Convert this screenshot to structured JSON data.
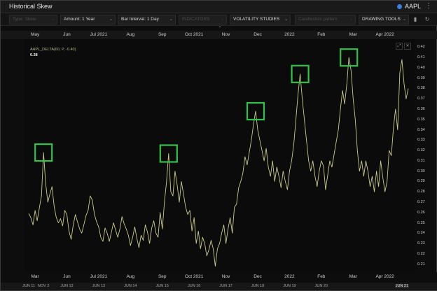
{
  "window": {
    "title": "Historical Skew",
    "symbol": "AAPL",
    "symbol_dot_color": "#3d7fe0",
    "menu_icon": "more-vertical-icon"
  },
  "toolbar": {
    "type_label": "Type: Skew",
    "amount_label": "Amount: 1 Year",
    "interval_label": "Bar Interval: 1 Day",
    "indicators_label": "INDICATORS",
    "volatility_label": "VOLATILITY STUDIES",
    "candlestick_label": "Candlestick pattern",
    "drawing_label": "DRAWING TOOLS",
    "icons": [
      "gear-icon",
      "trash-icon",
      "refresh-icon"
    ]
  },
  "legend": {
    "series_label": "AAPL_DELTA(60, P, -0.40)",
    "current_value": "0.38",
    "line_color": "#c8cc8a"
  },
  "highlight_color": "#35c24a",
  "top_axis_labels": [
    {
      "text": "May",
      "x": 1.5
    },
    {
      "text": "Jun",
      "x": 9
    },
    {
      "text": "Jul 2021",
      "x": 16.5
    },
    {
      "text": "Aug",
      "x": 24
    },
    {
      "text": "Sep",
      "x": 31.5
    },
    {
      "text": "Oct 2021",
      "x": 39
    },
    {
      "text": "Nov",
      "x": 46.5
    },
    {
      "text": "Dec",
      "x": 54
    },
    {
      "text": "2022",
      "x": 61.5
    },
    {
      "text": "Feb",
      "x": 69
    },
    {
      "text": "Mar",
      "x": 76.5
    },
    {
      "text": "Apr 2022",
      "x": 84
    }
  ],
  "bottom_axis_labels": [
    {
      "text": "Mar",
      "x": 1.5
    },
    {
      "text": "Jun",
      "x": 9
    },
    {
      "text": "Jul 2021",
      "x": 16.5
    },
    {
      "text": "Aug",
      "x": 24
    },
    {
      "text": "Sep",
      "x": 31.5
    },
    {
      "text": "Oct 2021",
      "x": 39
    },
    {
      "text": "Nov",
      "x": 46.5
    },
    {
      "text": "Dec",
      "x": 54
    },
    {
      "text": "2022",
      "x": 61.5
    },
    {
      "text": "Feb",
      "x": 69
    },
    {
      "text": "Mar",
      "x": 76.5
    },
    {
      "text": "Apr 2022",
      "x": 84
    }
  ],
  "contract_labels": [
    {
      "text": "JUN 11",
      "x": 0
    },
    {
      "text": "NOV 2",
      "x": 3.5
    },
    {
      "text": "JUN 12",
      "x": 9
    },
    {
      "text": "JUN 13",
      "x": 16.5
    },
    {
      "text": "JUN 14",
      "x": 24
    },
    {
      "text": "JUN 15",
      "x": 31.5
    },
    {
      "text": "JUN 16",
      "x": 39
    },
    {
      "text": "JUN 17",
      "x": 46.5
    },
    {
      "text": "JUN 18",
      "x": 54
    },
    {
      "text": "JUN 19",
      "x": 61.5
    },
    {
      "text": "JUN 20",
      "x": 69
    },
    {
      "text": "JUN 21",
      "x": 88
    }
  ],
  "chart_data": {
    "type": "line",
    "title": "",
    "xlabel": "",
    "ylabel": "",
    "x_range": [
      0,
      90
    ],
    "ylim": [
      0.205,
      0.425
    ],
    "y_ticks": [
      0.21,
      0.22,
      0.23,
      0.24,
      0.25,
      0.26,
      0.27,
      0.28,
      0.29,
      0.3,
      0.31,
      0.32,
      0.33,
      0.34,
      0.35,
      0.36,
      0.37,
      0.38,
      0.39,
      0.4,
      0.41,
      0.42
    ],
    "y_tick_labels": [
      "0.21",
      "0.22",
      "0.23",
      "0.24",
      "0.25",
      "0.26",
      "0.27",
      "0.28",
      "0.29",
      "0.30",
      "0.31",
      "0.32",
      "0.33",
      "0.34",
      "0.35",
      "0.36",
      "0.37",
      "0.38",
      "0.39",
      "0.40",
      "0.41",
      "0.42"
    ],
    "series": [
      {
        "values": [
          [
            0,
            0.259
          ],
          [
            0.5,
            0.255
          ],
          [
            1,
            0.248
          ],
          [
            1.5,
            0.262
          ],
          [
            2,
            0.252
          ],
          [
            2.5,
            0.264
          ],
          [
            3,
            0.276
          ],
          [
            3.5,
            0.318
          ],
          [
            4,
            0.288
          ],
          [
            4.5,
            0.27
          ],
          [
            5,
            0.278
          ],
          [
            5.5,
            0.285
          ],
          [
            6,
            0.266
          ],
          [
            6.5,
            0.255
          ],
          [
            7,
            0.25
          ],
          [
            7.5,
            0.254
          ],
          [
            8,
            0.247
          ],
          [
            8.5,
            0.262
          ],
          [
            9,
            0.258
          ],
          [
            9.5,
            0.242
          ],
          [
            10,
            0.234
          ],
          [
            10.5,
            0.248
          ],
          [
            11,
            0.258
          ],
          [
            11.5,
            0.251
          ],
          [
            12,
            0.244
          ],
          [
            12.5,
            0.24
          ],
          [
            13,
            0.248
          ],
          [
            13.5,
            0.257
          ],
          [
            14,
            0.262
          ],
          [
            14.5,
            0.276
          ],
          [
            15,
            0.272
          ],
          [
            15.5,
            0.258
          ],
          [
            16,
            0.251
          ],
          [
            16.5,
            0.246
          ],
          [
            17,
            0.236
          ],
          [
            17.5,
            0.232
          ],
          [
            18,
            0.245
          ],
          [
            18.5,
            0.24
          ],
          [
            19,
            0.232
          ],
          [
            19.5,
            0.241
          ],
          [
            20,
            0.25
          ],
          [
            20.5,
            0.243
          ],
          [
            21,
            0.236
          ],
          [
            21.5,
            0.244
          ],
          [
            22,
            0.256
          ],
          [
            22.5,
            0.249
          ],
          [
            23,
            0.244
          ],
          [
            23.5,
            0.238
          ],
          [
            24,
            0.228
          ],
          [
            24.5,
            0.236
          ],
          [
            25,
            0.246
          ],
          [
            25.5,
            0.235
          ],
          [
            26,
            0.226
          ],
          [
            26.5,
            0.238
          ],
          [
            27,
            0.233
          ],
          [
            27.5,
            0.248
          ],
          [
            28,
            0.241
          ],
          [
            28.5,
            0.23
          ],
          [
            29,
            0.245
          ],
          [
            29.5,
            0.252
          ],
          [
            30,
            0.24
          ],
          [
            30.5,
            0.236
          ],
          [
            31,
            0.26
          ],
          [
            31.5,
            0.244
          ],
          [
            32,
            0.27
          ],
          [
            32.5,
            0.29
          ],
          [
            33,
            0.317
          ],
          [
            33.5,
            0.28
          ],
          [
            34,
            0.276
          ],
          [
            34.5,
            0.3
          ],
          [
            35,
            0.287
          ],
          [
            35.5,
            0.27
          ],
          [
            36,
            0.29
          ],
          [
            36.5,
            0.278
          ],
          [
            37,
            0.265
          ],
          [
            37.5,
            0.258
          ],
          [
            38,
            0.262
          ],
          [
            38.5,
            0.242
          ],
          [
            39,
            0.255
          ],
          [
            39.5,
            0.23
          ],
          [
            40,
            0.242
          ],
          [
            40.5,
            0.225
          ],
          [
            41,
            0.236
          ],
          [
            41.5,
            0.23
          ],
          [
            42,
            0.218
          ],
          [
            42.5,
            0.224
          ],
          [
            43,
            0.233
          ],
          [
            43.5,
            0.225
          ],
          [
            44,
            0.208
          ],
          [
            44.5,
            0.225
          ],
          [
            45,
            0.23
          ],
          [
            45.5,
            0.24
          ],
          [
            46,
            0.248
          ],
          [
            46.5,
            0.23
          ],
          [
            47,
            0.244
          ],
          [
            47.5,
            0.255
          ],
          [
            48,
            0.24
          ],
          [
            48.5,
            0.265
          ],
          [
            49,
            0.268
          ],
          [
            49.5,
            0.284
          ],
          [
            50,
            0.29
          ],
          [
            50.5,
            0.298
          ],
          [
            51,
            0.314
          ],
          [
            51.5,
            0.306
          ],
          [
            52,
            0.318
          ],
          [
            52.5,
            0.33
          ],
          [
            53,
            0.345
          ],
          [
            53.5,
            0.358
          ],
          [
            54,
            0.34
          ],
          [
            54.5,
            0.33
          ],
          [
            55,
            0.32
          ],
          [
            55.5,
            0.31
          ],
          [
            56,
            0.322
          ],
          [
            56.5,
            0.304
          ],
          [
            57,
            0.295
          ],
          [
            57.5,
            0.31
          ],
          [
            58,
            0.29
          ],
          [
            58.5,
            0.304
          ],
          [
            59,
            0.295
          ],
          [
            59.5,
            0.284
          ],
          [
            60,
            0.3
          ],
          [
            60.5,
            0.29
          ],
          [
            61,
            0.282
          ],
          [
            61.5,
            0.3
          ],
          [
            62,
            0.31
          ],
          [
            62.5,
            0.326
          ],
          [
            63,
            0.35
          ],
          [
            63.5,
            0.374
          ],
          [
            64,
            0.394
          ],
          [
            64.5,
            0.37
          ],
          [
            65,
            0.35
          ],
          [
            65.5,
            0.33
          ],
          [
            66,
            0.31
          ],
          [
            66.5,
            0.3
          ],
          [
            67,
            0.31
          ],
          [
            67.5,
            0.295
          ],
          [
            68,
            0.285
          ],
          [
            68.5,
            0.3
          ],
          [
            69,
            0.31
          ],
          [
            69.5,
            0.305
          ],
          [
            70,
            0.282
          ],
          [
            70.5,
            0.296
          ],
          [
            71,
            0.31
          ],
          [
            71.5,
            0.304
          ],
          [
            72,
            0.316
          ],
          [
            72.5,
            0.328
          ],
          [
            73,
            0.34
          ],
          [
            73.5,
            0.36
          ],
          [
            74,
            0.378
          ],
          [
            74.5,
            0.365
          ],
          [
            75,
            0.384
          ],
          [
            75.5,
            0.41
          ],
          [
            76,
            0.398
          ],
          [
            76.5,
            0.37
          ],
          [
            77,
            0.35
          ],
          [
            77.5,
            0.32
          ],
          [
            78,
            0.3
          ],
          [
            78.5,
            0.31
          ],
          [
            79,
            0.295
          ],
          [
            79.5,
            0.31
          ],
          [
            80,
            0.3
          ],
          [
            80.5,
            0.285
          ],
          [
            81,
            0.295
          ],
          [
            81.5,
            0.28
          ],
          [
            82,
            0.3
          ],
          [
            82.5,
            0.285
          ],
          [
            83,
            0.31
          ],
          [
            83.5,
            0.294
          ],
          [
            84,
            0.28
          ],
          [
            84.5,
            0.29
          ],
          [
            85,
            0.32
          ],
          [
            85.5,
            0.315
          ],
          [
            86,
            0.342
          ],
          [
            86.5,
            0.36
          ],
          [
            87,
            0.34
          ],
          [
            87.5,
            0.395
          ],
          [
            88,
            0.408
          ],
          [
            88.5,
            0.385
          ],
          [
            89,
            0.37
          ],
          [
            89.5,
            0.38
          ]
        ]
      }
    ],
    "highlights": [
      {
        "x": 3.5,
        "y": 0.318
      },
      {
        "x": 33,
        "y": 0.317
      },
      {
        "x": 53.5,
        "y": 0.358
      },
      {
        "x": 64,
        "y": 0.394
      },
      {
        "x": 75.5,
        "y": 0.41
      }
    ],
    "grid": false
  }
}
